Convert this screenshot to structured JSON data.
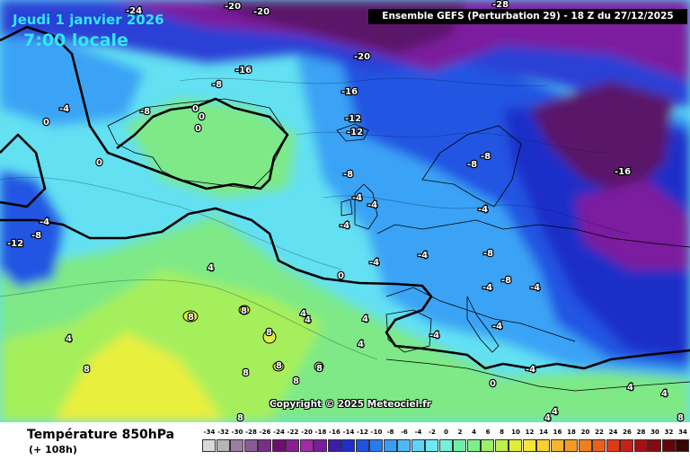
{
  "header": {
    "date": "Jeudi 1 janvier 2026",
    "local_time": "7:00 locale",
    "run_info": "Ensemble GEFS  (Perturbation 29)  -  18 Z du 27/12/2025"
  },
  "footer": {
    "field": "Température 850hPa",
    "lead_time": "(+ 108h)",
    "copyright": "Copyright © 2025 Meteociel.fr"
  },
  "legend": {
    "values": [
      "-34",
      "-32",
      "-30",
      "-28",
      "-26",
      "-24",
      "-22",
      "-20",
      "-18",
      "-16",
      "-14",
      "-12",
      "-10",
      "-8",
      "-6",
      "-4",
      "-2",
      "0",
      "2",
      "4",
      "6",
      "8",
      "10",
      "12",
      "14",
      "16",
      "18",
      "20",
      "22",
      "24",
      "26",
      "28",
      "30",
      "32",
      "34"
    ],
    "colors": [
      "#d9d9d9",
      "#b5b5b5",
      "#9a7fa3",
      "#8a5a96",
      "#7b2d87",
      "#6e0f70",
      "#8a1f8f",
      "#a12aa5",
      "#7b1d9e",
      "#3a1ea8",
      "#1f2fc8",
      "#1f52e0",
      "#2a7aef",
      "#3a9cf5",
      "#4fb8f7",
      "#5fd3f8",
      "#6fe7f4",
      "#76f0d8",
      "#6fefa6",
      "#7cf08a",
      "#9af06a",
      "#c0ee4a",
      "#e2ec3a",
      "#f5e63a",
      "#f7cf30",
      "#f7b52a",
      "#f59a22",
      "#f07f1f",
      "#ea5f1c",
      "#de3a18",
      "#c72018",
      "#a80f14",
      "#860a10",
      "#640609",
      "#3a0305"
    ]
  },
  "map": {
    "description_colors": {
      "deep_cold": "#5a1269",
      "cold": "#2a3fd6",
      "mild": "#63e0f2",
      "warm": "#8cef74"
    },
    "labels": [
      {
        "text": "-24",
        "id": "l1"
      },
      {
        "text": "-20",
        "id": "l2"
      },
      {
        "text": "-20",
        "id": "l3"
      },
      {
        "text": "-28",
        "id": "l4"
      },
      {
        "text": "-20",
        "id": "l5"
      },
      {
        "text": "-16",
        "id": "l6"
      },
      {
        "text": "-8",
        "id": "l7"
      },
      {
        "text": "-16",
        "id": "l8"
      },
      {
        "text": "-4",
        "id": "l9"
      },
      {
        "text": "-8",
        "id": "l10"
      },
      {
        "text": "0",
        "id": "l11"
      },
      {
        "text": "0",
        "id": "l12"
      },
      {
        "text": "0",
        "id": "l13"
      },
      {
        "text": "0",
        "id": "l14"
      },
      {
        "text": "-12",
        "id": "l15"
      },
      {
        "text": "-12",
        "id": "l16"
      },
      {
        "text": "0",
        "id": "l17"
      },
      {
        "text": "-8",
        "id": "l18"
      },
      {
        "text": "-8",
        "id": "l19"
      },
      {
        "text": "-16",
        "id": "l20"
      },
      {
        "text": "-8",
        "id": "l21"
      },
      {
        "text": "-4",
        "id": "l22"
      },
      {
        "text": "-4",
        "id": "l23"
      },
      {
        "text": "-4",
        "id": "l24"
      },
      {
        "text": "-4",
        "id": "l25"
      },
      {
        "text": "-12",
        "id": "l26"
      },
      {
        "text": "-8",
        "id": "l27"
      },
      {
        "text": "-4",
        "id": "l28"
      },
      {
        "text": "-4",
        "id": "l29"
      },
      {
        "text": "-8",
        "id": "l30"
      },
      {
        "text": "-4",
        "id": "l31"
      },
      {
        "text": "-8",
        "id": "l32"
      },
      {
        "text": "-4",
        "id": "l33"
      },
      {
        "text": "0",
        "id": "l34"
      },
      {
        "text": "4",
        "id": "l35"
      },
      {
        "text": "-4",
        "id": "l36"
      },
      {
        "text": "-4",
        "id": "l37"
      },
      {
        "text": "-4",
        "id": "l38"
      },
      {
        "text": "4",
        "id": "l39"
      },
      {
        "text": "4",
        "id": "l40"
      },
      {
        "text": "8",
        "id": "l41"
      },
      {
        "text": "8",
        "id": "l42"
      },
      {
        "text": "4",
        "id": "l43"
      },
      {
        "text": "4",
        "id": "l44"
      },
      {
        "text": "8",
        "id": "l45"
      },
      {
        "text": "8",
        "id": "l46"
      },
      {
        "text": "8",
        "id": "l47"
      },
      {
        "text": "4",
        "id": "l48"
      },
      {
        "text": "8",
        "id": "l49"
      },
      {
        "text": "8",
        "id": "l50"
      },
      {
        "text": "8",
        "id": "l51"
      },
      {
        "text": "0",
        "id": "l52"
      },
      {
        "text": "-4",
        "id": "l53"
      },
      {
        "text": "4",
        "id": "l54"
      },
      {
        "text": "4",
        "id": "l55"
      },
      {
        "text": "4",
        "id": "l56"
      },
      {
        "text": "4",
        "id": "l57"
      },
      {
        "text": "8",
        "id": "l58"
      },
      {
        "text": "8",
        "id": "l59"
      }
    ]
  }
}
